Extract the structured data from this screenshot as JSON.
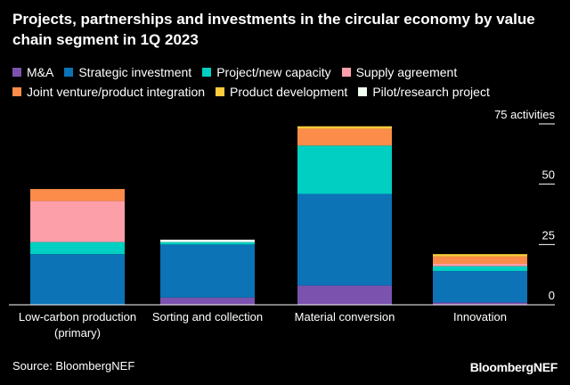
{
  "chart_data": {
    "type": "bar",
    "stacked": true,
    "title": "Projects, partnerships and investments in the circular economy by value chain segment in 1Q 2023",
    "ylabel": "",
    "yunit": "activities",
    "ylim": [
      0,
      75
    ],
    "yticks": [
      0,
      25,
      50,
      75
    ],
    "ytick_labels": [
      "0",
      "25",
      "50",
      "75 activities"
    ],
    "grid": false,
    "axis_side": "right",
    "legend_position": "top",
    "categories": [
      "Low-carbon production (primary)",
      "Sorting and collection",
      "Material conversion",
      "Innovation"
    ],
    "category_lines": [
      [
        "Low-carbon production",
        "(primary)"
      ],
      [
        "Sorting and collection"
      ],
      [
        "Material conversion"
      ],
      [
        "Innovation"
      ]
    ],
    "series": [
      {
        "name": "M&A",
        "color": "#7b52ae",
        "values": [
          0,
          3,
          8,
          1
        ]
      },
      {
        "name": "Strategic investment",
        "color": "#0c73b7",
        "values": [
          21,
          22,
          38,
          13
        ]
      },
      {
        "name": "Project/new capacity",
        "color": "#00cfc1",
        "values": [
          5,
          1,
          20,
          2
        ]
      },
      {
        "name": "Supply agreement",
        "color": "#fd9fa9",
        "values": [
          17,
          0,
          0,
          1
        ]
      },
      {
        "name": "Joint venture/product integration",
        "color": "#fb8c49",
        "values": [
          5,
          0,
          7,
          3
        ]
      },
      {
        "name": "Product development",
        "color": "#fdcb3c",
        "values": [
          0,
          0,
          1,
          1
        ]
      },
      {
        "name": "Pilot/research project",
        "color": "#f0fff1",
        "values": [
          0,
          1,
          0,
          0
        ]
      }
    ]
  },
  "source": "Source: BloombergNEF",
  "brand": "BloombergNEF"
}
